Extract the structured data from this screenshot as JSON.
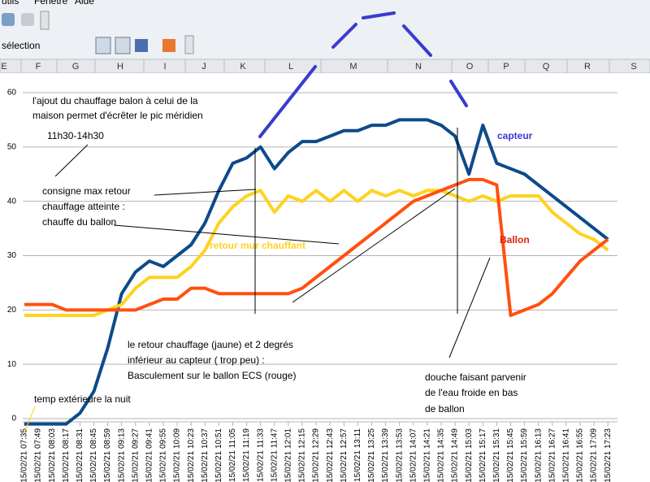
{
  "menu": [
    "utils",
    "Fenêtre",
    "Aide"
  ],
  "toolbar": {
    "selection": "sélection"
  },
  "columns": [
    "E",
    "F",
    "G",
    "H",
    "I",
    "J",
    "K",
    "L",
    "M",
    "N",
    "O",
    "P",
    "Q",
    "R",
    "S"
  ],
  "chart_data": {
    "type": "line",
    "annotations": [
      "l'ajout du chauffage balon à celui de la",
      "maison permet d'écrêter le pic méridien",
      "11h30-14h30",
      "consigne max retour",
      "chauffage atteinte :",
      "chauffe du ballon",
      "retour mur chauffant",
      "capteur",
      "Ballon",
      "le retour chauffage (jaune) et 2 degrés",
      "inférieur au capteur ( trop peu) :",
      "Basculement sur le ballon ECS (rouge)",
      "douche faisant parvenir",
      "de l'eau froide en bas",
      "de ballon",
      "temp extérieure la nuit"
    ],
    "categories": [
      "15/02/21 07:35",
      "15/02/21 07:49",
      "15/02/21 08:03",
      "15/02/21 08:17",
      "15/02/21 08:31",
      "15/02/21 08:45",
      "15/02/21 08:59",
      "15/02/21 09:13",
      "15/02/21 09:27",
      "15/02/21 09:41",
      "15/02/21 09:55",
      "15/02/21 10:09",
      "15/02/21 10:23",
      "15/02/21 10:37",
      "15/02/21 10:51",
      "15/02/21 11:05",
      "15/02/21 11:19",
      "15/02/21 11:33",
      "15/02/21 11:47",
      "15/02/21 12:01",
      "15/02/21 12:15",
      "15/02/21 12:29",
      "15/02/21 12:43",
      "15/02/21 12:57",
      "15/02/21 13:11",
      "15/02/21 13:25",
      "15/02/21 13:39",
      "15/02/21 13:53",
      "15/02/21 14:07",
      "15/02/21 14:21",
      "15/02/21 14:35",
      "15/02/21 14:49",
      "15/02/21 15:03",
      "15/02/21 15:17",
      "15/02/21 15:31",
      "15/02/21 15:45",
      "15/02/21 15:59",
      "15/02/21 16:13",
      "15/02/21 16:27",
      "15/02/21 16:41",
      "15/02/21 16:55",
      "15/02/21 17:09",
      "15/02/21 17:23"
    ],
    "series": [
      {
        "name": "capteur",
        "color": "#0d4a8a",
        "values": [
          -1,
          -1,
          -1,
          -1,
          1,
          5,
          13,
          23,
          27,
          29,
          28,
          30,
          32,
          36,
          42,
          47,
          48,
          50,
          46,
          49,
          51,
          51,
          52,
          53,
          53,
          54,
          54,
          55,
          55,
          55,
          54,
          52,
          45,
          54,
          47,
          46,
          45,
          43,
          41,
          39,
          37,
          35,
          33
        ]
      },
      {
        "name": "retour mur chauffant",
        "color": "#ffd21f",
        "values": [
          19,
          19,
          19,
          19,
          19,
          19,
          20,
          21,
          24,
          26,
          26,
          26,
          28,
          31,
          36,
          39,
          41,
          42,
          38,
          41,
          40,
          42,
          40,
          42,
          40,
          42,
          41,
          42,
          41,
          42,
          42,
          41,
          40,
          41,
          40,
          41,
          41,
          41,
          38,
          36,
          34,
          33,
          31
        ]
      },
      {
        "name": "Ballon",
        "color": "#ff5010",
        "values": [
          21,
          21,
          21,
          20,
          20,
          20,
          20,
          20,
          20,
          21,
          22,
          22,
          24,
          24,
          23,
          23,
          23,
          23,
          23,
          23,
          24,
          26,
          28,
          30,
          32,
          34,
          36,
          38,
          40,
          41,
          42,
          43,
          44,
          44,
          43,
          19,
          20,
          21,
          23,
          26,
          29,
          31,
          33
        ]
      }
    ],
    "ylim": [
      0,
      60
    ],
    "yticks": [
      0,
      10,
      20,
      30,
      40,
      50,
      60
    ],
    "grid": true
  }
}
